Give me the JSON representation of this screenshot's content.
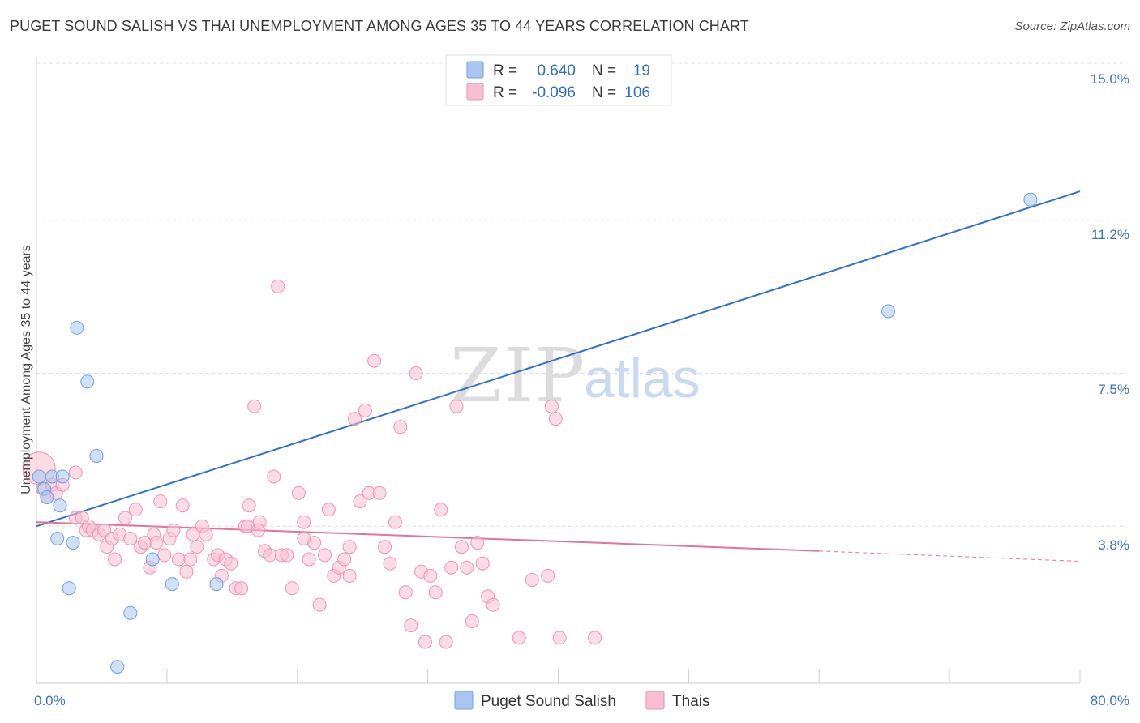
{
  "title": "PUGET SOUND SALISH VS THAI UNEMPLOYMENT AMONG AGES 35 TO 44 YEARS CORRELATION CHART",
  "source": "Source: ZipAtlas.com",
  "watermark": {
    "zip": "ZIP",
    "atlas": "atlas"
  },
  "legend": {
    "r_label": "R =",
    "n_label": "N =",
    "rows": [
      {
        "r": "0.640",
        "n": "19",
        "color": "#a8c6f0",
        "stroke": "#6f9fe0"
      },
      {
        "r": "-0.096",
        "n": "106",
        "color": "#f7bfd0",
        "stroke": "#ee93b1"
      }
    ]
  },
  "chart_data": {
    "type": "scatter",
    "title": "PUGET SOUND SALISH VS THAI UNEMPLOYMENT AMONG AGES 35 TO 44 YEARS CORRELATION CHART",
    "xlabel": "",
    "ylabel": "Unemployment Among Ages 35 to 44 years",
    "xlim": [
      0,
      80
    ],
    "ylim": [
      0,
      15.0
    ],
    "x_tick_labels": [
      "0.0%",
      "80.0%"
    ],
    "y_ticks": [
      3.8,
      7.5,
      11.2,
      15.0
    ],
    "y_tick_labels": [
      "3.8%",
      "7.5%",
      "11.2%",
      "15.0%"
    ],
    "series": [
      {
        "name": "Puget Sound Salish",
        "color": "#a8c6f0",
        "stroke": "#6f9fe0",
        "line_color": "#2f6fd0",
        "trend": {
          "x": [
            0,
            80
          ],
          "y": [
            3.8,
            11.9
          ]
        },
        "points": [
          [
            0.2,
            5.0
          ],
          [
            0.6,
            4.7
          ],
          [
            1.2,
            5.0
          ],
          [
            2.0,
            5.0
          ],
          [
            0.8,
            4.5
          ],
          [
            1.8,
            4.3
          ],
          [
            1.6,
            3.5
          ],
          [
            2.8,
            3.4
          ],
          [
            3.1,
            8.6
          ],
          [
            3.9,
            7.3
          ],
          [
            4.6,
            5.5
          ],
          [
            2.5,
            2.3
          ],
          [
            7.2,
            1.7
          ],
          [
            6.2,
            0.4
          ],
          [
            8.9,
            3.0
          ],
          [
            10.4,
            2.4
          ],
          [
            13.8,
            2.4
          ],
          [
            65.3,
            9.0
          ],
          [
            76.2,
            11.7
          ]
        ]
      },
      {
        "name": "Thais",
        "color": "#f7bfd0",
        "stroke": "#ee93b1",
        "line_color": "#e5729a",
        "trend": {
          "x": [
            0,
            60
          ],
          "y": [
            3.9,
            3.2
          ]
        },
        "trend_dashed": {
          "x": [
            60,
            80
          ],
          "y": [
            3.2,
            2.95
          ]
        },
        "points": [
          [
            0.2,
            5.2
          ],
          [
            0.5,
            4.7
          ],
          [
            0.8,
            4.5
          ],
          [
            1.2,
            4.8
          ],
          [
            1.5,
            4.6
          ],
          [
            2.0,
            4.8
          ],
          [
            3.0,
            5.1
          ],
          [
            3.0,
            4.0
          ],
          [
            3.5,
            4.0
          ],
          [
            3.8,
            3.7
          ],
          [
            4.0,
            3.8
          ],
          [
            4.3,
            3.7
          ],
          [
            4.8,
            3.6
          ],
          [
            5.2,
            3.7
          ],
          [
            5.4,
            3.3
          ],
          [
            5.8,
            3.5
          ],
          [
            6.0,
            3.0
          ],
          [
            6.4,
            3.6
          ],
          [
            6.8,
            4.0
          ],
          [
            7.2,
            3.5
          ],
          [
            7.6,
            4.2
          ],
          [
            8.0,
            3.3
          ],
          [
            8.3,
            3.4
          ],
          [
            8.7,
            2.8
          ],
          [
            9.0,
            3.6
          ],
          [
            9.2,
            3.4
          ],
          [
            9.5,
            4.4
          ],
          [
            9.8,
            3.1
          ],
          [
            10.2,
            3.5
          ],
          [
            10.5,
            3.7
          ],
          [
            10.9,
            3.0
          ],
          [
            11.2,
            4.3
          ],
          [
            11.5,
            2.7
          ],
          [
            11.8,
            3.0
          ],
          [
            12.0,
            3.6
          ],
          [
            12.3,
            3.3
          ],
          [
            12.7,
            3.8
          ],
          [
            13.0,
            3.6
          ],
          [
            13.6,
            3.0
          ],
          [
            13.9,
            3.1
          ],
          [
            14.2,
            2.6
          ],
          [
            14.5,
            3.0
          ],
          [
            14.9,
            2.9
          ],
          [
            15.3,
            2.3
          ],
          [
            15.7,
            2.3
          ],
          [
            16.0,
            3.8
          ],
          [
            16.3,
            4.3
          ],
          [
            16.7,
            6.7
          ],
          [
            17.1,
            3.9
          ],
          [
            17.5,
            3.2
          ],
          [
            17.9,
            3.1
          ],
          [
            18.2,
            5.0
          ],
          [
            18.5,
            9.6
          ],
          [
            18.8,
            3.1
          ],
          [
            19.2,
            3.1
          ],
          [
            19.6,
            2.3
          ],
          [
            20.1,
            4.6
          ],
          [
            20.5,
            3.9
          ],
          [
            20.9,
            3.0
          ],
          [
            21.3,
            3.4
          ],
          [
            21.7,
            1.9
          ],
          [
            22.1,
            3.1
          ],
          [
            22.4,
            4.2
          ],
          [
            22.8,
            2.6
          ],
          [
            23.2,
            2.8
          ],
          [
            23.6,
            3.0
          ],
          [
            24.0,
            2.6
          ],
          [
            24.4,
            6.4
          ],
          [
            24.8,
            4.4
          ],
          [
            25.2,
            6.6
          ],
          [
            25.5,
            4.6
          ],
          [
            25.9,
            7.8
          ],
          [
            26.3,
            4.6
          ],
          [
            26.7,
            3.3
          ],
          [
            27.1,
            2.9
          ],
          [
            27.5,
            3.9
          ],
          [
            27.9,
            6.2
          ],
          [
            28.3,
            2.2
          ],
          [
            28.7,
            1.4
          ],
          [
            29.1,
            7.5
          ],
          [
            29.5,
            2.7
          ],
          [
            29.8,
            1.0
          ],
          [
            30.2,
            2.6
          ],
          [
            30.6,
            2.2
          ],
          [
            31.0,
            4.2
          ],
          [
            31.4,
            1.0
          ],
          [
            31.8,
            2.8
          ],
          [
            32.2,
            6.7
          ],
          [
            32.6,
            3.3
          ],
          [
            33.0,
            2.8
          ],
          [
            33.4,
            1.5
          ],
          [
            33.8,
            3.4
          ],
          [
            34.2,
            2.9
          ],
          [
            34.6,
            2.1
          ],
          [
            35.0,
            1.9
          ],
          [
            37.0,
            1.1
          ],
          [
            38.0,
            2.5
          ],
          [
            39.2,
            2.6
          ],
          [
            39.5,
            6.7
          ],
          [
            39.8,
            6.4
          ],
          [
            40.1,
            1.1
          ],
          [
            42.8,
            1.1
          ],
          [
            16.2,
            3.8
          ],
          [
            17.0,
            3.7
          ],
          [
            20.5,
            3.5
          ],
          [
            24.0,
            3.3
          ]
        ]
      }
    ]
  },
  "bottom_legend": [
    {
      "label": "Puget Sound Salish",
      "color": "#a8c6f0",
      "stroke": "#6f9fe0"
    },
    {
      "label": "Thais",
      "color": "#f7bfd0",
      "stroke": "#ee93b1"
    }
  ]
}
